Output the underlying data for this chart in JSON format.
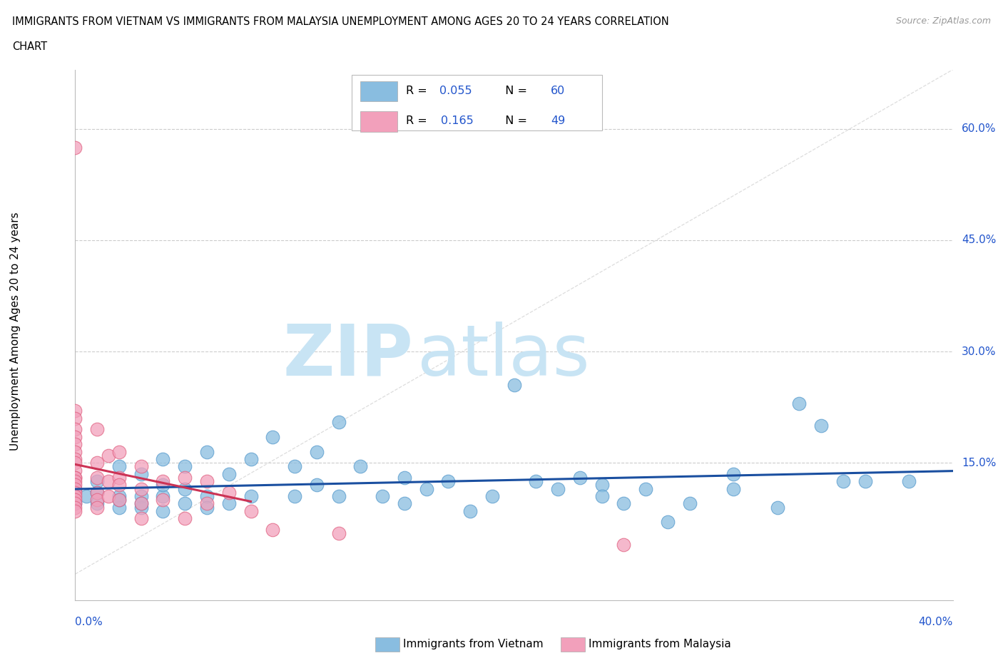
{
  "title_line1": "IMMIGRANTS FROM VIETNAM VS IMMIGRANTS FROM MALAYSIA UNEMPLOYMENT AMONG AGES 20 TO 24 YEARS CORRELATION",
  "title_line2": "CHART",
  "source_text": "Source: ZipAtlas.com",
  "ylabel": "Unemployment Among Ages 20 to 24 years",
  "ytick_labels": [
    "60.0%",
    "45.0%",
    "30.0%",
    "15.0%"
  ],
  "ytick_values": [
    0.6,
    0.45,
    0.3,
    0.15
  ],
  "xlim": [
    0.0,
    0.4
  ],
  "ylim": [
    -0.035,
    0.68
  ],
  "vietnam_color": "#89bde0",
  "malaysia_color": "#f2a0bb",
  "vietnam_edge": "#5599cc",
  "malaysia_edge": "#e06080",
  "trend_vietnam_color": "#1a4fa0",
  "trend_malaysia_color": "#cc3355",
  "background_color": "#ffffff",
  "grid_color": "#cccccc",
  "diag_color": "#dddddd",
  "watermark_zip_color": "#c8e4f4",
  "watermark_atlas_color": "#c8e4f4",
  "vietnam_scatter": [
    [
      0.0,
      0.115
    ],
    [
      0.0,
      0.095
    ],
    [
      0.005,
      0.105
    ],
    [
      0.01,
      0.125
    ],
    [
      0.01,
      0.095
    ],
    [
      0.01,
      0.11
    ],
    [
      0.02,
      0.145
    ],
    [
      0.02,
      0.105
    ],
    [
      0.02,
      0.09
    ],
    [
      0.02,
      0.1
    ],
    [
      0.03,
      0.135
    ],
    [
      0.03,
      0.105
    ],
    [
      0.03,
      0.09
    ],
    [
      0.03,
      0.095
    ],
    [
      0.04,
      0.155
    ],
    [
      0.04,
      0.105
    ],
    [
      0.04,
      0.085
    ],
    [
      0.04,
      0.12
    ],
    [
      0.05,
      0.145
    ],
    [
      0.05,
      0.095
    ],
    [
      0.05,
      0.115
    ],
    [
      0.06,
      0.165
    ],
    [
      0.06,
      0.105
    ],
    [
      0.06,
      0.09
    ],
    [
      0.07,
      0.135
    ],
    [
      0.07,
      0.095
    ],
    [
      0.08,
      0.155
    ],
    [
      0.08,
      0.105
    ],
    [
      0.09,
      0.185
    ],
    [
      0.1,
      0.145
    ],
    [
      0.1,
      0.105
    ],
    [
      0.11,
      0.165
    ],
    [
      0.11,
      0.12
    ],
    [
      0.12,
      0.205
    ],
    [
      0.12,
      0.105
    ],
    [
      0.13,
      0.145
    ],
    [
      0.14,
      0.105
    ],
    [
      0.15,
      0.13
    ],
    [
      0.15,
      0.095
    ],
    [
      0.16,
      0.115
    ],
    [
      0.17,
      0.125
    ],
    [
      0.18,
      0.085
    ],
    [
      0.19,
      0.105
    ],
    [
      0.2,
      0.255
    ],
    [
      0.21,
      0.125
    ],
    [
      0.22,
      0.115
    ],
    [
      0.23,
      0.13
    ],
    [
      0.24,
      0.12
    ],
    [
      0.24,
      0.105
    ],
    [
      0.25,
      0.095
    ],
    [
      0.26,
      0.115
    ],
    [
      0.27,
      0.07
    ],
    [
      0.28,
      0.095
    ],
    [
      0.3,
      0.135
    ],
    [
      0.3,
      0.115
    ],
    [
      0.32,
      0.09
    ],
    [
      0.33,
      0.23
    ],
    [
      0.34,
      0.2
    ],
    [
      0.35,
      0.125
    ],
    [
      0.36,
      0.125
    ],
    [
      0.38,
      0.125
    ]
  ],
  "malaysia_scatter": [
    [
      0.0,
      0.575
    ],
    [
      0.0,
      0.22
    ],
    [
      0.0,
      0.21
    ],
    [
      0.0,
      0.195
    ],
    [
      0.0,
      0.185
    ],
    [
      0.0,
      0.175
    ],
    [
      0.0,
      0.165
    ],
    [
      0.0,
      0.155
    ],
    [
      0.0,
      0.15
    ],
    [
      0.0,
      0.14
    ],
    [
      0.0,
      0.13
    ],
    [
      0.0,
      0.13
    ],
    [
      0.0,
      0.125
    ],
    [
      0.0,
      0.12
    ],
    [
      0.0,
      0.115
    ],
    [
      0.0,
      0.11
    ],
    [
      0.0,
      0.105
    ],
    [
      0.0,
      0.1
    ],
    [
      0.0,
      0.095
    ],
    [
      0.0,
      0.09
    ],
    [
      0.0,
      0.085
    ],
    [
      0.01,
      0.195
    ],
    [
      0.01,
      0.15
    ],
    [
      0.01,
      0.13
    ],
    [
      0.01,
      0.11
    ],
    [
      0.01,
      0.1
    ],
    [
      0.01,
      0.09
    ],
    [
      0.015,
      0.16
    ],
    [
      0.015,
      0.125
    ],
    [
      0.015,
      0.105
    ],
    [
      0.02,
      0.165
    ],
    [
      0.02,
      0.13
    ],
    [
      0.02,
      0.12
    ],
    [
      0.02,
      0.1
    ],
    [
      0.03,
      0.145
    ],
    [
      0.03,
      0.115
    ],
    [
      0.03,
      0.095
    ],
    [
      0.03,
      0.075
    ],
    [
      0.04,
      0.125
    ],
    [
      0.04,
      0.1
    ],
    [
      0.05,
      0.13
    ],
    [
      0.05,
      0.075
    ],
    [
      0.06,
      0.125
    ],
    [
      0.06,
      0.095
    ],
    [
      0.07,
      0.11
    ],
    [
      0.08,
      0.085
    ],
    [
      0.09,
      0.06
    ],
    [
      0.12,
      0.055
    ],
    [
      0.25,
      0.04
    ]
  ]
}
